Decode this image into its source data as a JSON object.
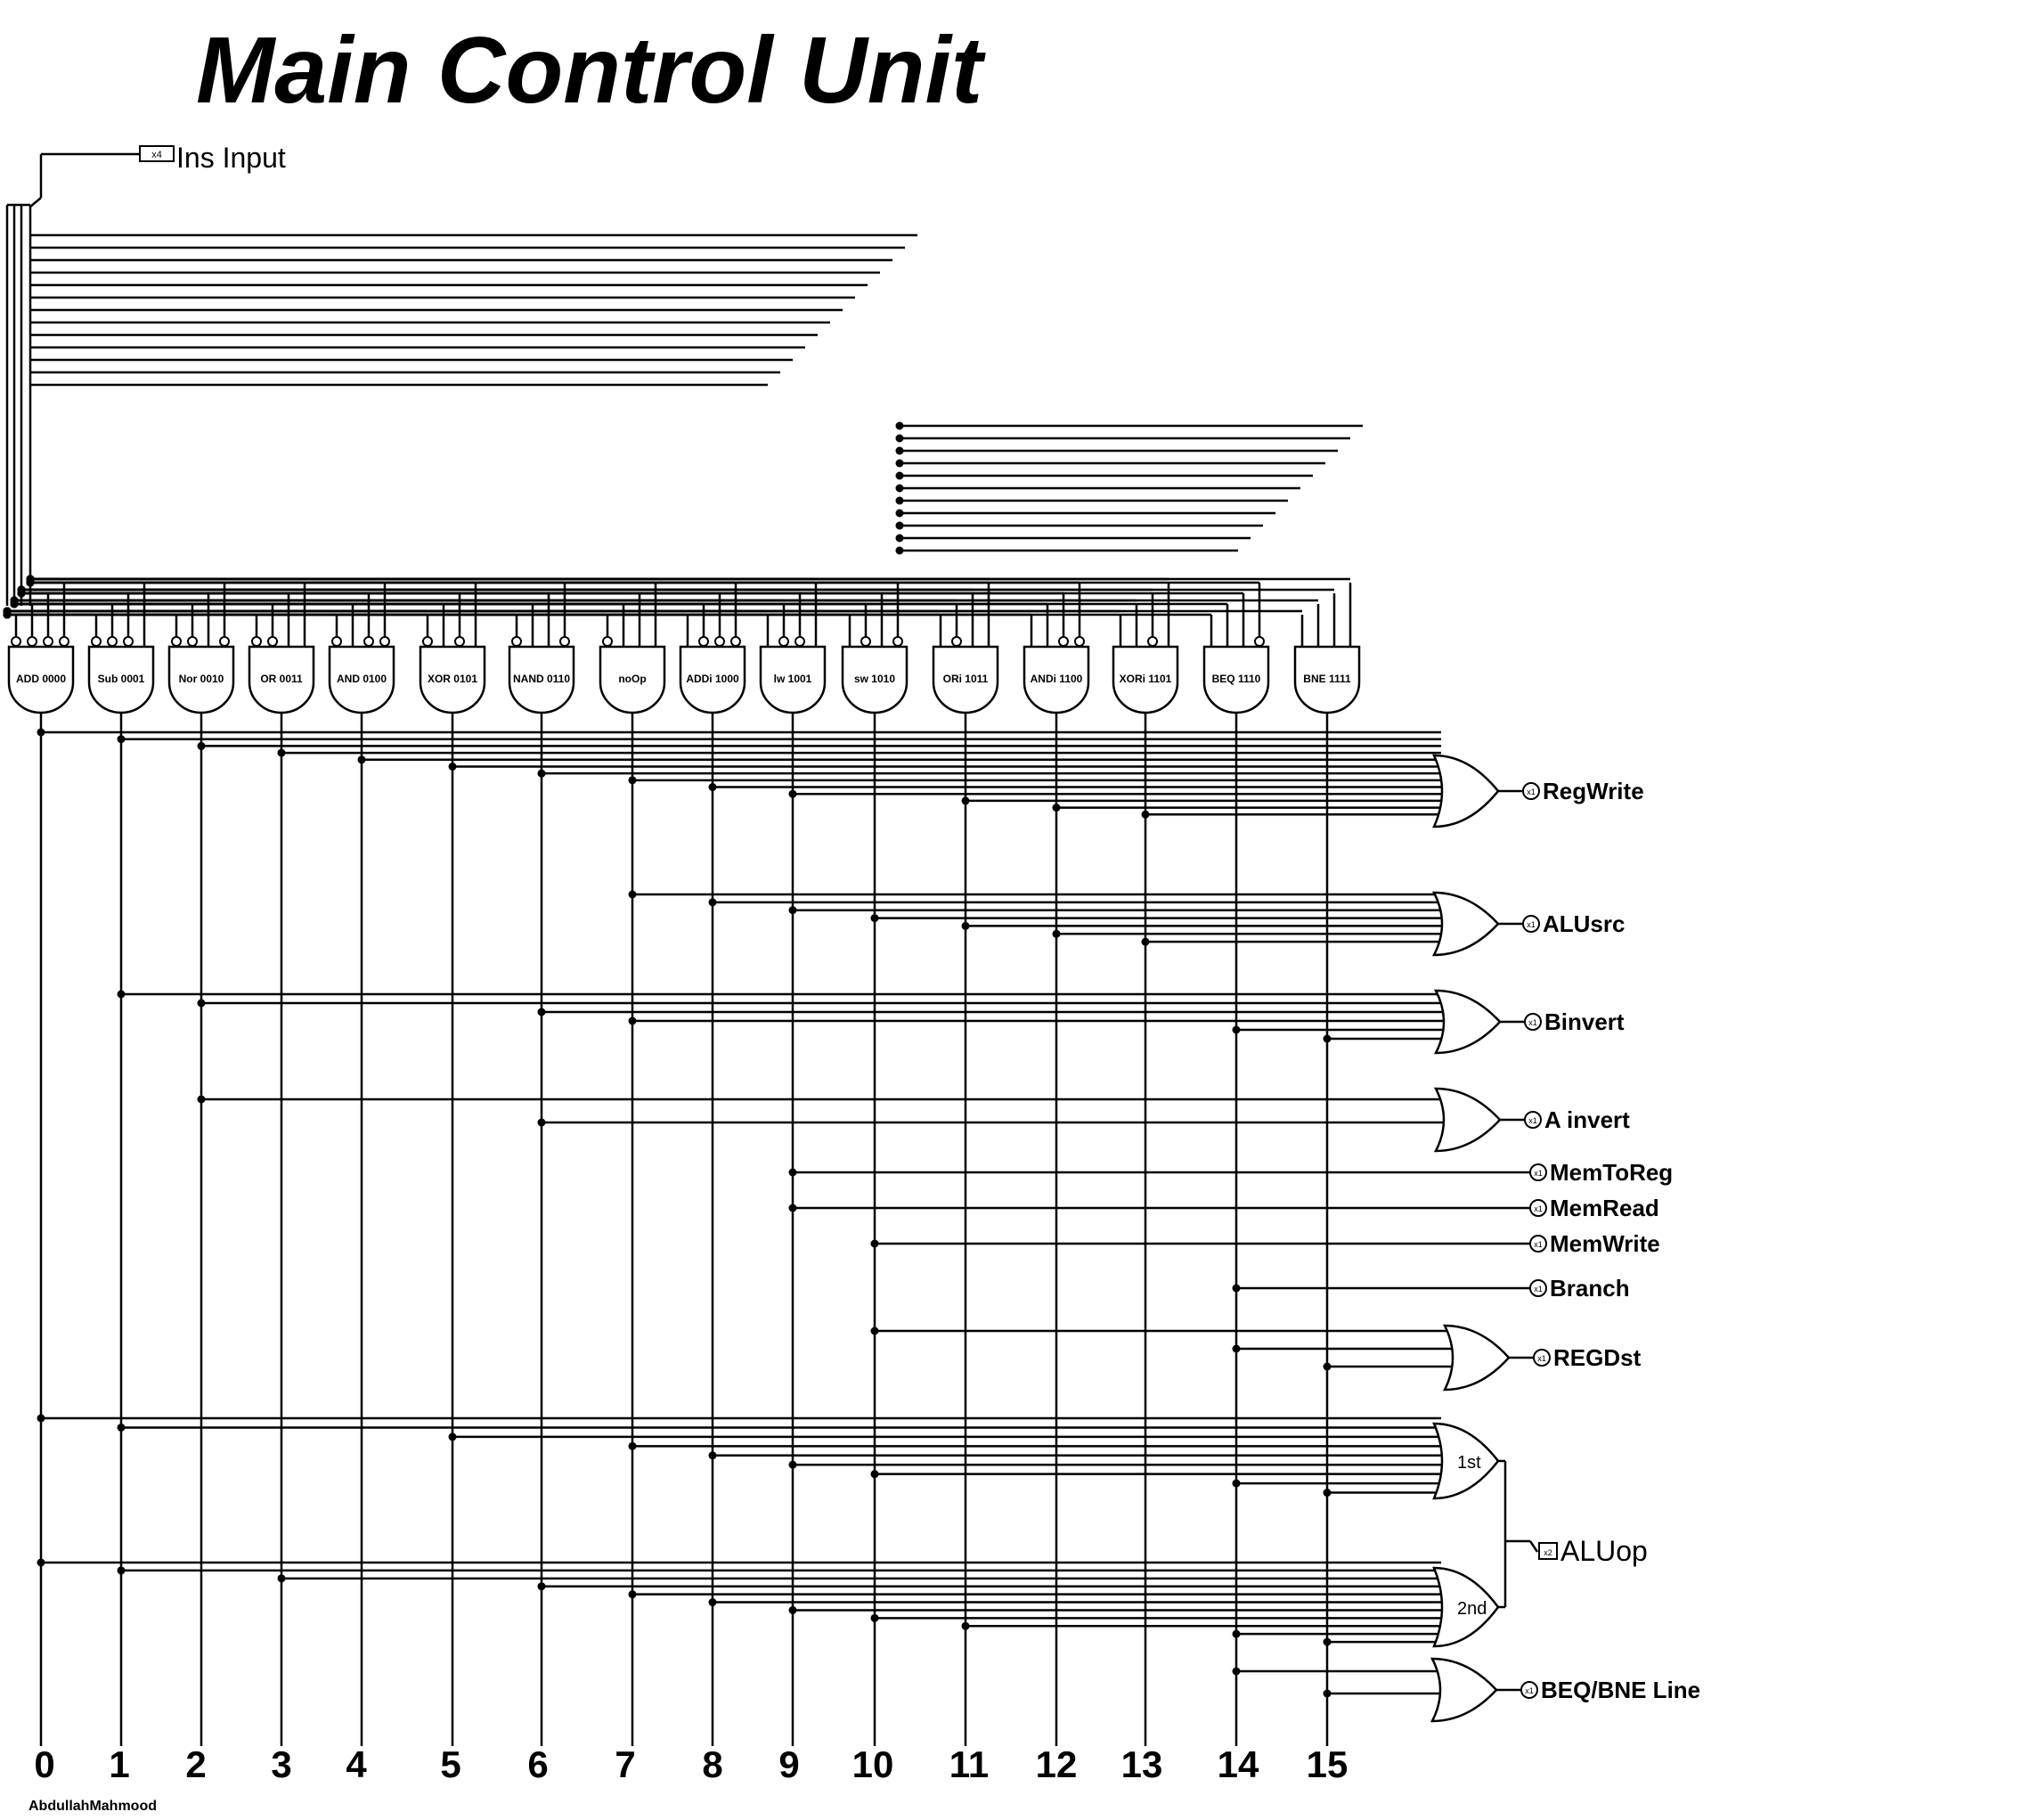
{
  "title": "Main Control Unit",
  "input": {
    "label": "Ins Input",
    "width_tag": "x4"
  },
  "gates": [
    {
      "label": "ADD 0000",
      "bits": "0000",
      "index": "0"
    },
    {
      "label": "Sub 0001",
      "bits": "0001",
      "index": "1"
    },
    {
      "label": "Nor 0010",
      "bits": "0010",
      "index": "2"
    },
    {
      "label": "OR 0011",
      "bits": "0011",
      "index": "3"
    },
    {
      "label": "AND 0100",
      "bits": "0100",
      "index": "4"
    },
    {
      "label": "XOR 0101",
      "bits": "0101",
      "index": "5"
    },
    {
      "label": "NAND 0110",
      "bits": "0110",
      "index": "6"
    },
    {
      "label": "noOp",
      "bits": "0111",
      "index": "7"
    },
    {
      "label": "ADDi 1000",
      "bits": "1000",
      "index": "8"
    },
    {
      "label": "lw 1001",
      "bits": "1001",
      "index": "9"
    },
    {
      "label": "sw 1010",
      "bits": "1010",
      "index": "10"
    },
    {
      "label": "ORi 1011",
      "bits": "1011",
      "index": "11"
    },
    {
      "label": "ANDi 1100",
      "bits": "1100",
      "index": "12"
    },
    {
      "label": "XORi 1101",
      "bits": "1101",
      "index": "13"
    },
    {
      "label": "BEQ 1110",
      "bits": "1110",
      "index": "14"
    },
    {
      "label": "BNE 1111",
      "bits": "1111",
      "index": "15"
    }
  ],
  "outputs": [
    {
      "label": "RegWrite",
      "tag": "x1",
      "gate": "or",
      "taps": [
        0,
        1,
        2,
        3,
        4,
        5,
        6,
        7,
        8,
        9,
        11,
        12,
        13
      ]
    },
    {
      "label": "ALUsrc",
      "tag": "x1",
      "gate": "or",
      "taps": [
        7,
        8,
        9,
        10,
        11,
        12,
        13
      ]
    },
    {
      "label": "Binvert",
      "tag": "x1",
      "gate": "or",
      "taps": [
        1,
        2,
        6,
        7,
        14,
        15
      ]
    },
    {
      "label": "A invert",
      "tag": "x1",
      "gate": "or",
      "taps": [
        2,
        6
      ]
    },
    {
      "label": "MemToReg",
      "tag": "x1",
      "gate": "wire",
      "taps": [
        9
      ]
    },
    {
      "label": "MemRead",
      "tag": "x1",
      "gate": "wire",
      "taps": [
        9
      ]
    },
    {
      "label": "MemWrite",
      "tag": "x1",
      "gate": "wire",
      "taps": [
        10
      ]
    },
    {
      "label": "Branch",
      "tag": "x1",
      "gate": "wire",
      "taps": [
        14
      ]
    },
    {
      "label": "REGDst",
      "tag": "x1",
      "gate": "or",
      "taps": [
        10,
        14,
        15
      ]
    },
    {
      "label": "BEQ/BNE Line",
      "tag": "x1",
      "gate": "or",
      "taps": [
        14,
        15
      ]
    }
  ],
  "aluop": {
    "label": "ALUop",
    "tag": "x2",
    "first": {
      "label": "1st",
      "taps": [
        0,
        1,
        5,
        7,
        8,
        9,
        10,
        14,
        15
      ]
    },
    "second": {
      "label": "2nd",
      "taps": [
        0,
        1,
        3,
        6,
        7,
        8,
        9,
        10,
        11,
        14,
        15
      ]
    }
  },
  "author": "AbdullahMahmood",
  "colors": {
    "wire": "#000000",
    "background": "#ffffff",
    "dot": "#000000"
  }
}
